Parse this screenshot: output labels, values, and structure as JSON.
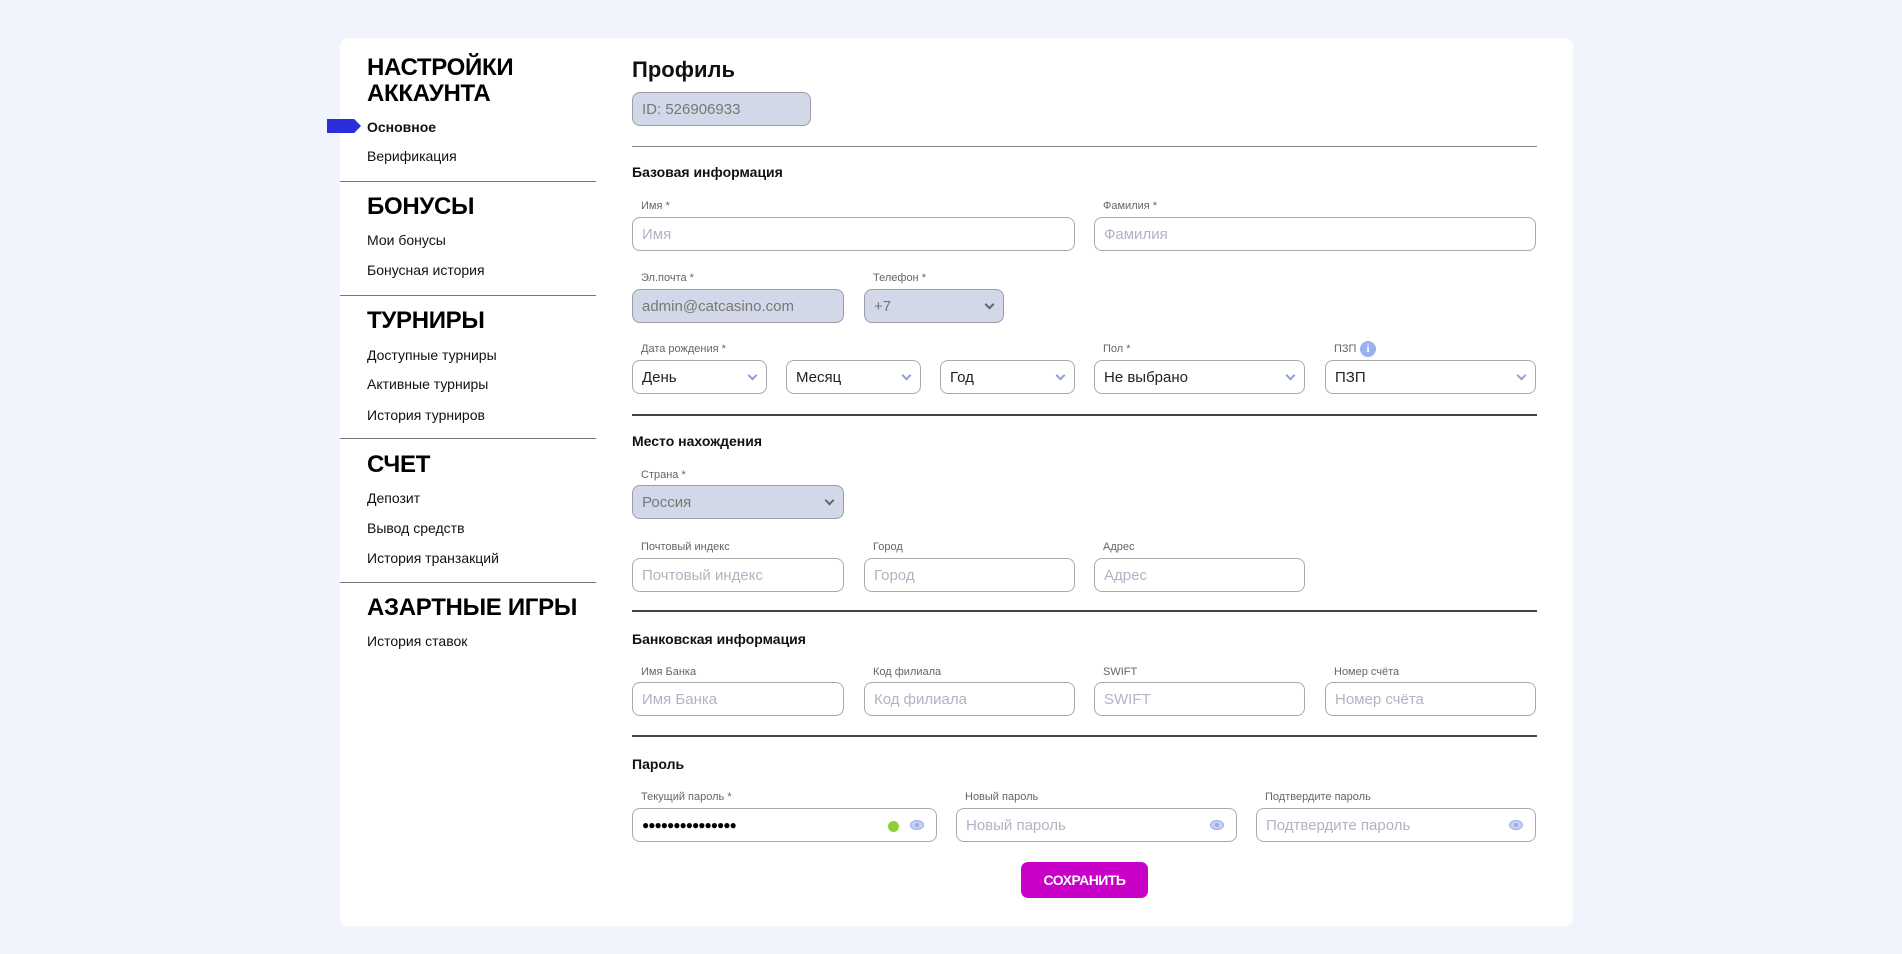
{
  "sidebar": {
    "sections": [
      {
        "title_lines": [
          "НАСТРОЙКИ",
          "АККАУНТА"
        ],
        "items": [
          "Основное",
          "Верификация"
        ]
      },
      {
        "title": "БОНУСЫ",
        "items": [
          "Мои бонусы",
          "Бонусная история"
        ]
      },
      {
        "title": "ТУРНИРЫ",
        "items": [
          "Доступные турниры",
          "Активные турниры",
          "История турниров"
        ]
      },
      {
        "title": "СЧЕТ",
        "items": [
          "Депозит",
          "Вывод средств",
          "История транзакций"
        ]
      },
      {
        "title": "АЗАРТНЫЕ ИГРЫ",
        "items": [
          "История ставок"
        ]
      }
    ],
    "active_item": "Основное",
    "accent": "#2b2fd9"
  },
  "profile": {
    "title": "Профиль",
    "id": "ID: 526906933",
    "basic": {
      "title": "Базовая информация",
      "first_name": {
        "label": "Имя *",
        "placeholder": "Имя"
      },
      "last_name": {
        "label": "Фамилия *",
        "placeholder": "Фамилия"
      },
      "email": {
        "label": "Эл.почта *",
        "value": "admin@catcasino.com"
      },
      "phone": {
        "label": "Телефон *",
        "value": "+7"
      },
      "birth": {
        "label": "Дата рождения *",
        "day": "День",
        "month": "Месяц",
        "year": "Год"
      },
      "gender": {
        "label": "Пол *",
        "value": "Не выбрано"
      },
      "pzp": {
        "label": "ПЗП",
        "value": "ПЗП",
        "info_icon": "info-icon"
      }
    },
    "location": {
      "title": "Место нахождения",
      "country": {
        "label": "Страна *",
        "value": "Россия"
      },
      "postal": {
        "label": "Почтовый индекс",
        "placeholder": "Почтовый индекс"
      },
      "city": {
        "label": "Город",
        "placeholder": "Город"
      },
      "address": {
        "label": "Адрес",
        "placeholder": "Адрес"
      }
    },
    "bank": {
      "title": "Банковская информация",
      "bank_name": {
        "label": "Имя Банка",
        "placeholder": "Имя Банка"
      },
      "branch": {
        "label": "Код филиала",
        "placeholder": "Код филиала"
      },
      "swift": {
        "label": "SWIFT",
        "placeholder": "SWIFT"
      },
      "account": {
        "label": "Номер счёта",
        "placeholder": "Номер счёта"
      }
    },
    "password": {
      "title": "Пароль",
      "current": {
        "label": "Текущий пароль *",
        "value": "●●●●●●●●●●●●●●●"
      },
      "new": {
        "label": "Новый пароль",
        "placeholder": "Новый пароль"
      },
      "confirm": {
        "label": "Подтвердите пароль",
        "placeholder": "Подтвердите пароль"
      }
    },
    "save_label": "СОХРАНИТЬ",
    "save_color": "#c800c8"
  }
}
